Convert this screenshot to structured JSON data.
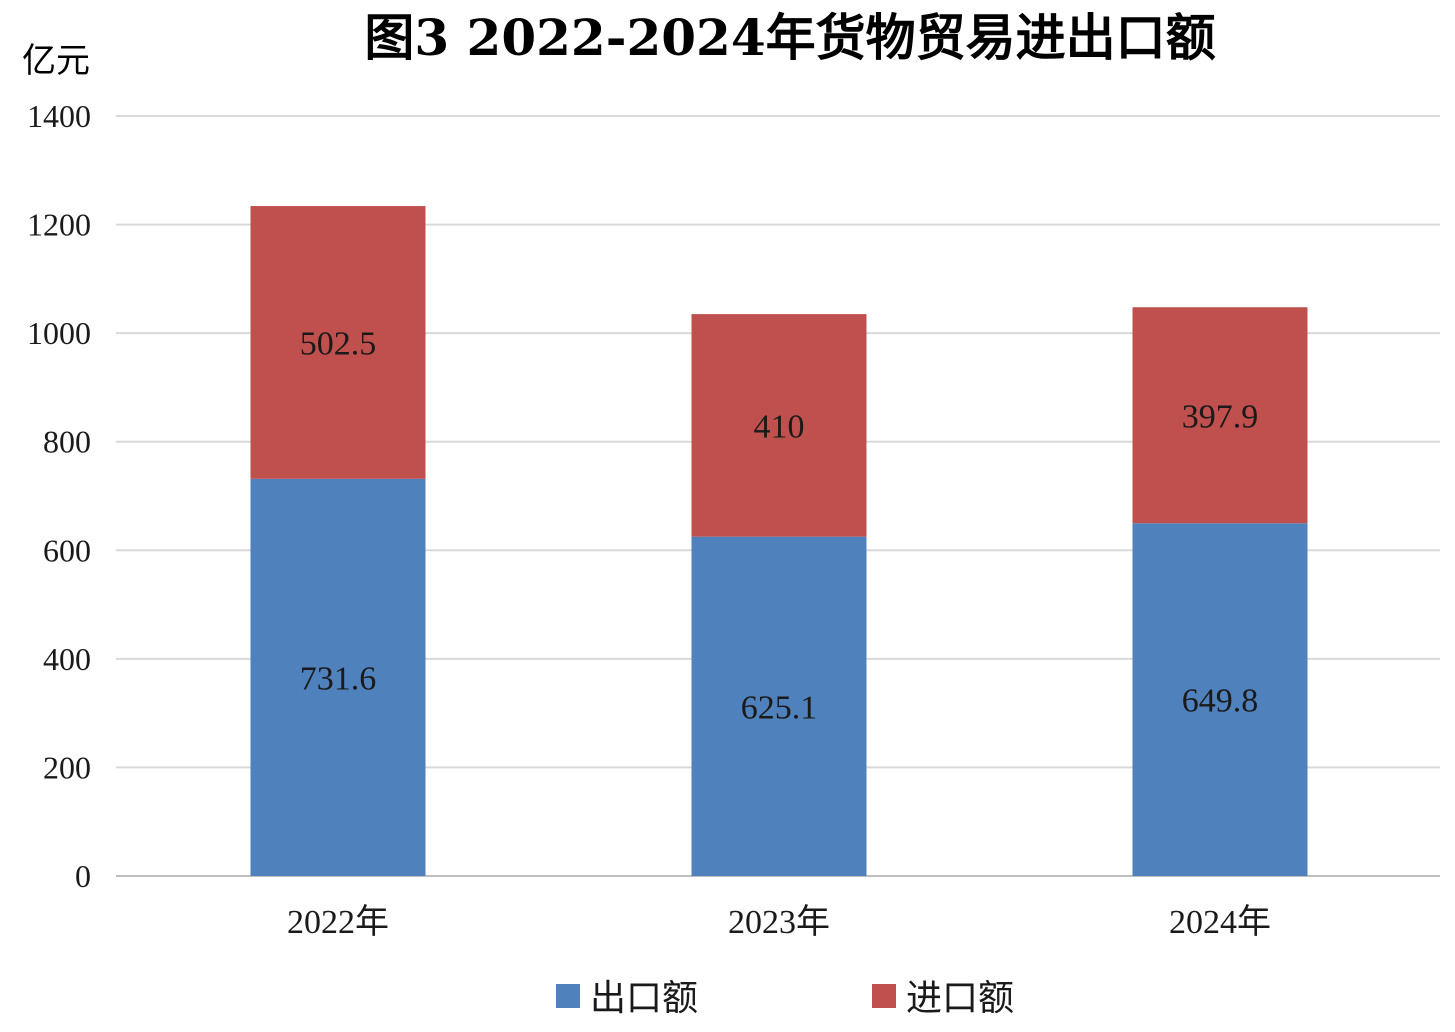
{
  "chart_data": {
    "type": "bar",
    "stacked": true,
    "title": "图3  2022-2024年货物贸易进出口额",
    "ylabel": "亿元",
    "ylim": [
      0,
      1400
    ],
    "yticks": [
      0,
      200,
      400,
      600,
      800,
      1000,
      1200,
      1400
    ],
    "grid": true,
    "legend_position": "bottom",
    "categories": [
      "2022年",
      "2023年",
      "2024年"
    ],
    "series": [
      {
        "name": "出口额",
        "values": [
          731.6,
          625.1,
          649.8
        ],
        "labels": [
          "731.6",
          "625.1",
          "649.8"
        ],
        "color": "#4f81bd"
      },
      {
        "name": "进口额",
        "values": [
          502.5,
          410,
          397.9
        ],
        "labels": [
          "502.5",
          "410",
          "397.9"
        ],
        "color": "#c0504d"
      }
    ]
  }
}
